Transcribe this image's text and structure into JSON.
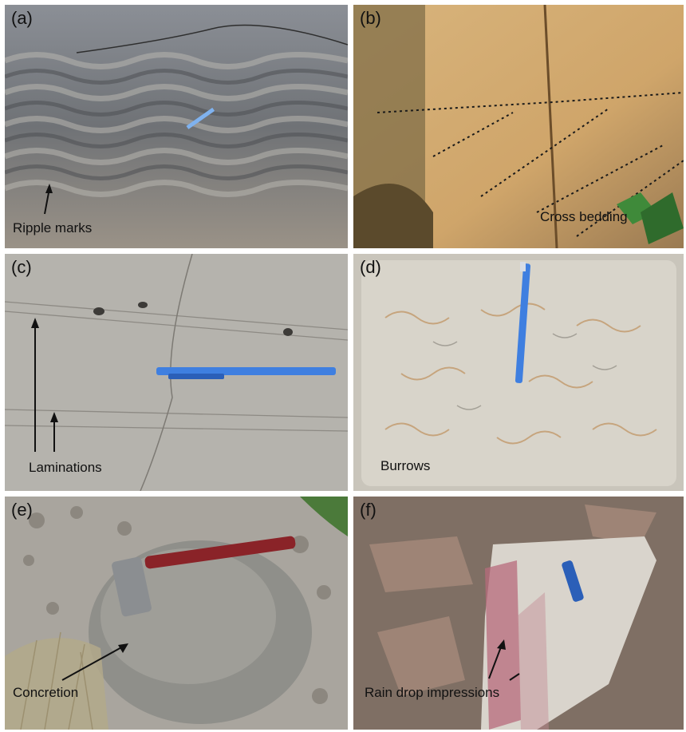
{
  "panels": {
    "a": {
      "label": "(a)",
      "annotation": "Ripple marks"
    },
    "b": {
      "label": "(b)",
      "annotation": "Cross bedding"
    },
    "c": {
      "label": "(c)",
      "annotation": "Laminations"
    },
    "d": {
      "label": "(d)",
      "annotation": "Burrows"
    },
    "e": {
      "label": "(e)",
      "annotation": "Concretion"
    },
    "f": {
      "label": "(f)",
      "annotation": "Rain drop impressions"
    }
  },
  "colors": {
    "pen_blue": "#3f7fe0",
    "hammer_red": "#8a2328",
    "rock_grey": "#8f8f8a",
    "sandstone": "#d9b27a"
  }
}
